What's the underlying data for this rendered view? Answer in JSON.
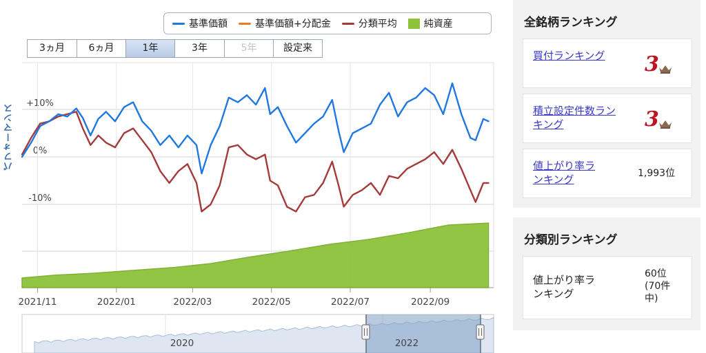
{
  "legend": {
    "items": [
      {
        "label": "基準価額",
        "color": "#1f77e0",
        "kind": "line"
      },
      {
        "label": "基準価額+分配金",
        "color": "#f07a1a",
        "kind": "line"
      },
      {
        "label": "分類平均",
        "color": "#a53a3a",
        "kind": "line"
      },
      {
        "label": "純資産",
        "color": "#8dc23a",
        "kind": "box"
      }
    ]
  },
  "range_buttons": [
    {
      "label": "3ヵ月",
      "state": "normal"
    },
    {
      "label": "6ヵ月",
      "state": "normal"
    },
    {
      "label": "1年",
      "state": "active"
    },
    {
      "label": "3年",
      "state": "normal"
    },
    {
      "label": "5年",
      "state": "disabled"
    },
    {
      "label": "設定来",
      "state": "normal"
    }
  ],
  "y_axis_title": "パフォーマンス",
  "chart_data": {
    "type": "line",
    "ylabel": "パフォーマンス",
    "ylim": [
      -12,
      20
    ],
    "yticks": [
      {
        "value": 10,
        "label": "+10%"
      },
      {
        "value": 0,
        "label": "0%"
      },
      {
        "value": -10,
        "label": "-10%"
      }
    ],
    "x_range": [
      "2021-10-20",
      "2022-10-20"
    ],
    "xticks": [
      {
        "date": "2021-11-01",
        "label": "2021/11"
      },
      {
        "date": "2022-01-01",
        "label": "2022/01"
      },
      {
        "date": "2022-03-01",
        "label": "2022/03"
      },
      {
        "date": "2022-05-01",
        "label": "2022/05"
      },
      {
        "date": "2022-07-01",
        "label": "2022/07"
      },
      {
        "date": "2022-09-01",
        "label": "2022/09"
      }
    ],
    "series": [
      {
        "name": "基準価額",
        "color": "#1f77e0",
        "points": [
          [
            "2021-10-20",
            0.0
          ],
          [
            "2021-10-27",
            3.0
          ],
          [
            "2021-11-03",
            6.5
          ],
          [
            "2021-11-10",
            7.5
          ],
          [
            "2021-11-17",
            9.0
          ],
          [
            "2021-11-24",
            8.5
          ],
          [
            "2021-12-01",
            10.2
          ],
          [
            "2021-12-06",
            8.2
          ],
          [
            "2021-12-12",
            4.5
          ],
          [
            "2021-12-18",
            8.0
          ],
          [
            "2021-12-24",
            9.5
          ],
          [
            "2021-12-31",
            7.5
          ],
          [
            "2022-01-07",
            10.5
          ],
          [
            "2022-01-14",
            11.5
          ],
          [
            "2022-01-21",
            7.5
          ],
          [
            "2022-01-28",
            5.5
          ],
          [
            "2022-02-04",
            2.5
          ],
          [
            "2022-02-11",
            4.5
          ],
          [
            "2022-02-18",
            2.0
          ],
          [
            "2022-02-25",
            4.5
          ],
          [
            "2022-03-04",
            2.5
          ],
          [
            "2022-03-08",
            -3.5
          ],
          [
            "2022-03-15",
            2.5
          ],
          [
            "2022-03-22",
            6.5
          ],
          [
            "2022-03-29",
            12.5
          ],
          [
            "2022-04-05",
            11.5
          ],
          [
            "2022-04-12",
            13.0
          ],
          [
            "2022-04-19",
            11.0
          ],
          [
            "2022-04-26",
            14.5
          ],
          [
            "2022-04-30",
            9.0
          ],
          [
            "2022-05-06",
            10.5
          ],
          [
            "2022-05-13",
            6.5
          ],
          [
            "2022-05-20",
            3.0
          ],
          [
            "2022-05-27",
            5.0
          ],
          [
            "2022-06-03",
            7.0
          ],
          [
            "2022-06-10",
            8.5
          ],
          [
            "2022-06-17",
            12.0
          ],
          [
            "2022-06-22",
            5.5
          ],
          [
            "2022-06-26",
            1.0
          ],
          [
            "2022-07-03",
            5.0
          ],
          [
            "2022-07-10",
            6.0
          ],
          [
            "2022-07-17",
            7.0
          ],
          [
            "2022-07-24",
            11.0
          ],
          [
            "2022-07-31",
            13.5
          ],
          [
            "2022-08-07",
            8.5
          ],
          [
            "2022-08-14",
            11.5
          ],
          [
            "2022-08-21",
            12.5
          ],
          [
            "2022-08-28",
            14.5
          ],
          [
            "2022-09-04",
            13.0
          ],
          [
            "2022-09-11",
            9.0
          ],
          [
            "2022-09-18",
            15.5
          ],
          [
            "2022-09-25",
            9.0
          ],
          [
            "2022-10-02",
            4.0
          ],
          [
            "2022-10-06",
            3.5
          ],
          [
            "2022-10-12",
            8.0
          ],
          [
            "2022-10-16",
            7.5
          ]
        ]
      },
      {
        "name": "分類平均",
        "color": "#a53a3a",
        "points": [
          [
            "2021-10-20",
            0.5
          ],
          [
            "2021-10-27",
            4.0
          ],
          [
            "2021-11-03",
            7.0
          ],
          [
            "2021-11-10",
            7.5
          ],
          [
            "2021-11-17",
            8.5
          ],
          [
            "2021-11-24",
            9.0
          ],
          [
            "2021-12-01",
            9.5
          ],
          [
            "2021-12-06",
            6.0
          ],
          [
            "2021-12-12",
            2.5
          ],
          [
            "2021-12-18",
            4.5
          ],
          [
            "2021-12-24",
            3.0
          ],
          [
            "2021-12-31",
            2.0
          ],
          [
            "2022-01-07",
            5.0
          ],
          [
            "2022-01-14",
            6.0
          ],
          [
            "2022-01-21",
            3.5
          ],
          [
            "2022-01-28",
            1.0
          ],
          [
            "2022-02-04",
            -3.0
          ],
          [
            "2022-02-11",
            -5.5
          ],
          [
            "2022-02-18",
            -3.0
          ],
          [
            "2022-02-25",
            -1.5
          ],
          [
            "2022-03-04",
            -5.5
          ],
          [
            "2022-03-08",
            -11.5
          ],
          [
            "2022-03-15",
            -10.0
          ],
          [
            "2022-03-22",
            -6.0
          ],
          [
            "2022-03-29",
            2.0
          ],
          [
            "2022-04-05",
            2.5
          ],
          [
            "2022-04-12",
            0.5
          ],
          [
            "2022-04-19",
            -0.5
          ],
          [
            "2022-04-26",
            0.5
          ],
          [
            "2022-04-30",
            -5.0
          ],
          [
            "2022-05-06",
            -6.0
          ],
          [
            "2022-05-13",
            -10.5
          ],
          [
            "2022-05-20",
            -11.5
          ],
          [
            "2022-05-27",
            -8.5
          ],
          [
            "2022-06-03",
            -8.0
          ],
          [
            "2022-06-10",
            -5.5
          ],
          [
            "2022-06-17",
            -1.0
          ],
          [
            "2022-06-22",
            -6.0
          ],
          [
            "2022-06-26",
            -10.5
          ],
          [
            "2022-07-03",
            -8.0
          ],
          [
            "2022-07-10",
            -7.0
          ],
          [
            "2022-07-17",
            -5.5
          ],
          [
            "2022-07-24",
            -8.0
          ],
          [
            "2022-07-31",
            -4.0
          ],
          [
            "2022-08-07",
            -4.5
          ],
          [
            "2022-08-14",
            -2.5
          ],
          [
            "2022-08-21",
            -1.5
          ],
          [
            "2022-08-28",
            -0.5
          ],
          [
            "2022-09-04",
            1.0
          ],
          [
            "2022-09-11",
            -1.5
          ],
          [
            "2022-09-18",
            1.5
          ],
          [
            "2022-09-25",
            -2.5
          ],
          [
            "2022-10-02",
            -7.0
          ],
          [
            "2022-10-06",
            -9.5
          ],
          [
            "2022-10-12",
            -5.5
          ],
          [
            "2022-10-16",
            -5.5
          ]
        ]
      }
    ],
    "net_assets": {
      "name": "純資産",
      "color": "#8dc23a",
      "points": [
        [
          "2021-10-20",
          0.1
        ],
        [
          "2021-11-15",
          0.13
        ],
        [
          "2021-12-15",
          0.15
        ],
        [
          "2022-01-15",
          0.18
        ],
        [
          "2022-02-15",
          0.21
        ],
        [
          "2022-03-15",
          0.25
        ],
        [
          "2022-04-15",
          0.32
        ],
        [
          "2022-05-15",
          0.38
        ],
        [
          "2022-06-15",
          0.45
        ],
        [
          "2022-07-15",
          0.5
        ],
        [
          "2022-08-15",
          0.57
        ],
        [
          "2022-09-15",
          0.65
        ],
        [
          "2022-10-16",
          0.67
        ]
      ]
    },
    "navigator": {
      "labels": [
        "2020",
        "2022"
      ]
    }
  },
  "sidebar": {
    "all_ranking": {
      "title": "全銘柄ランキング",
      "items": [
        {
          "label": "買付ランキング",
          "value": "3",
          "kind": "crown"
        },
        {
          "label": "積立設定件数ランキング",
          "value": "3",
          "kind": "crown"
        },
        {
          "label": "値上がり率ランキング",
          "value": "1,993位",
          "kind": "text"
        }
      ]
    },
    "category_ranking": {
      "title": "分類別ランキング",
      "item_label": "値上がり率ランキング",
      "item_value": "60位(70件中)"
    }
  }
}
